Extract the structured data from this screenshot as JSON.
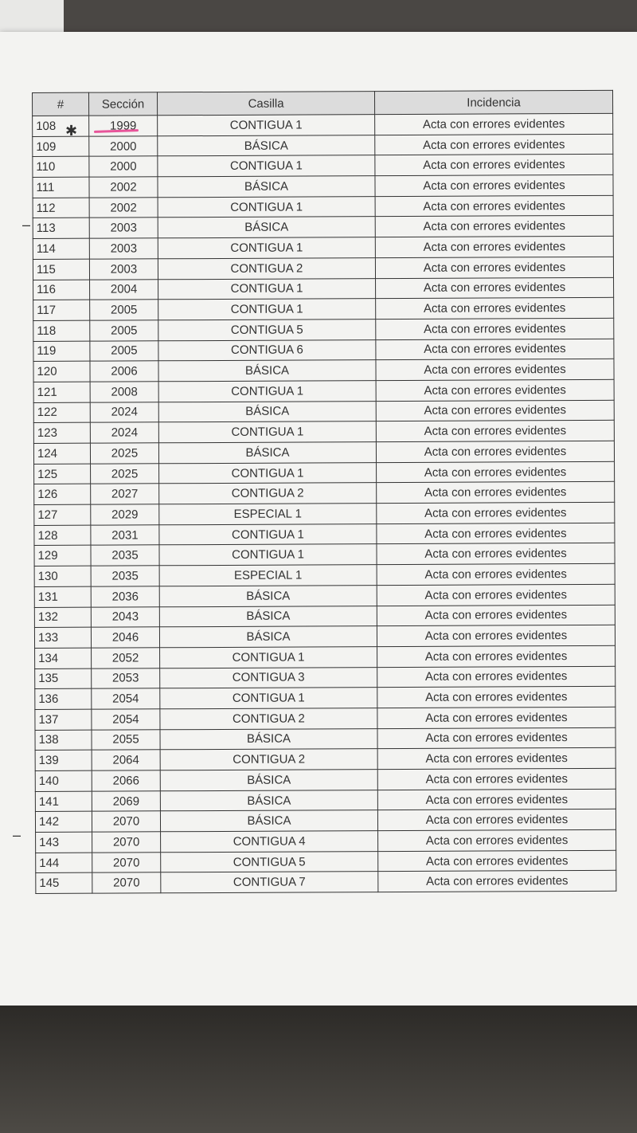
{
  "table": {
    "headers": [
      "#",
      "Sección",
      "Casilla",
      "Incidencia"
    ],
    "rows": [
      [
        "108",
        "1999",
        "CONTIGUA 1",
        "Acta con errores evidentes"
      ],
      [
        "109",
        "2000",
        "BÁSICA",
        "Acta con errores evidentes"
      ],
      [
        "110",
        "2000",
        "CONTIGUA 1",
        "Acta con errores evidentes"
      ],
      [
        "111",
        "2002",
        "BÁSICA",
        "Acta con errores evidentes"
      ],
      [
        "112",
        "2002",
        "CONTIGUA 1",
        "Acta con errores evidentes"
      ],
      [
        "113",
        "2003",
        "BÁSICA",
        "Acta con errores evidentes"
      ],
      [
        "114",
        "2003",
        "CONTIGUA 1",
        "Acta con errores evidentes"
      ],
      [
        "115",
        "2003",
        "CONTIGUA 2",
        "Acta con errores evidentes"
      ],
      [
        "116",
        "2004",
        "CONTIGUA 1",
        "Acta con errores evidentes"
      ],
      [
        "117",
        "2005",
        "CONTIGUA 1",
        "Acta con errores evidentes"
      ],
      [
        "118",
        "2005",
        "CONTIGUA 5",
        "Acta con errores evidentes"
      ],
      [
        "119",
        "2005",
        "CONTIGUA 6",
        "Acta con errores evidentes"
      ],
      [
        "120",
        "2006",
        "BÁSICA",
        "Acta con errores evidentes"
      ],
      [
        "121",
        "2008",
        "CONTIGUA 1",
        "Acta con errores evidentes"
      ],
      [
        "122",
        "2024",
        "BÁSICA",
        "Acta con errores evidentes"
      ],
      [
        "123",
        "2024",
        "CONTIGUA 1",
        "Acta con errores evidentes"
      ],
      [
        "124",
        "2025",
        "BÁSICA",
        "Acta con errores evidentes"
      ],
      [
        "125",
        "2025",
        "CONTIGUA 1",
        "Acta con errores evidentes"
      ],
      [
        "126",
        "2027",
        "CONTIGUA 2",
        "Acta con errores evidentes"
      ],
      [
        "127",
        "2029",
        "ESPECIAL 1",
        "Acta con errores evidentes"
      ],
      [
        "128",
        "2031",
        "CONTIGUA 1",
        "Acta con errores evidentes"
      ],
      [
        "129",
        "2035",
        "CONTIGUA 1",
        "Acta con errores evidentes"
      ],
      [
        "130",
        "2035",
        "ESPECIAL 1",
        "Acta con errores evidentes"
      ],
      [
        "131",
        "2036",
        "BÁSICA",
        "Acta con errores evidentes"
      ],
      [
        "132",
        "2043",
        "BÁSICA",
        "Acta con errores evidentes"
      ],
      [
        "133",
        "2046",
        "BÁSICA",
        "Acta con errores evidentes"
      ],
      [
        "134",
        "2052",
        "CONTIGUA 1",
        "Acta con errores evidentes"
      ],
      [
        "135",
        "2053",
        "CONTIGUA 3",
        "Acta con errores evidentes"
      ],
      [
        "136",
        "2054",
        "CONTIGUA 1",
        "Acta con errores evidentes"
      ],
      [
        "137",
        "2054",
        "CONTIGUA 2",
        "Acta con errores evidentes"
      ],
      [
        "138",
        "2055",
        "BÁSICA",
        "Acta con errores evidentes"
      ],
      [
        "139",
        "2064",
        "CONTIGUA 2",
        "Acta con errores evidentes"
      ],
      [
        "140",
        "2066",
        "BÁSICA",
        "Acta con errores evidentes"
      ],
      [
        "141",
        "2069",
        "BÁSICA",
        "Acta con errores evidentes"
      ],
      [
        "142",
        "2070",
        "BÁSICA",
        "Acta con errores evidentes"
      ],
      [
        "143",
        "2070",
        "CONTIGUA 4",
        "Acta con errores evidentes"
      ],
      [
        "144",
        "2070",
        "CONTIGUA 5",
        "Acta con errores evidentes"
      ],
      [
        "145",
        "2070",
        "CONTIGUA 7",
        "Acta con errores evidentes"
      ]
    ]
  },
  "annotations": {
    "highlight_color": "#e8559a",
    "asterisk_mark": "✱"
  }
}
